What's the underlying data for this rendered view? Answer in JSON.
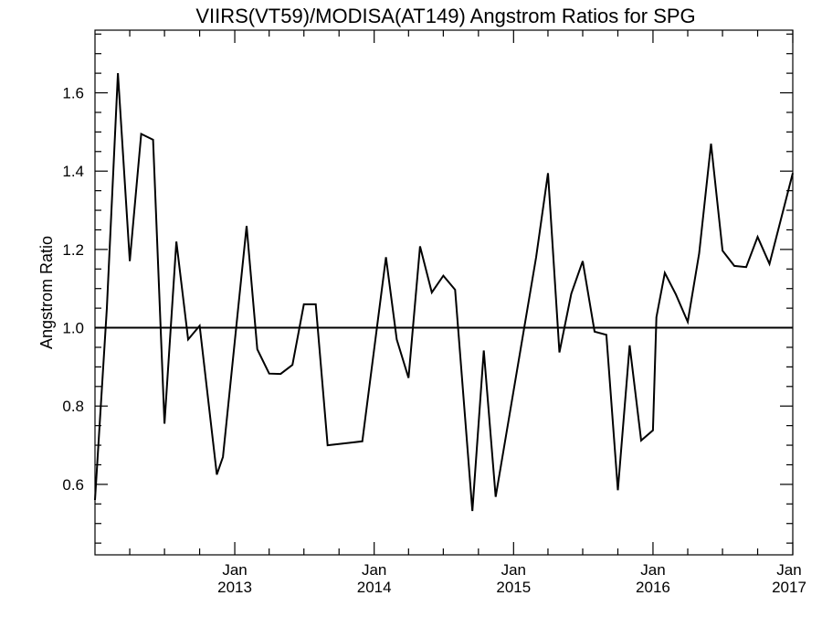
{
  "chart_data": {
    "type": "line",
    "title": "VIIRS(VT59)/MODISA(AT149)  Angstrom Ratios for SPG",
    "xlabel": "",
    "ylabel": "Angstrom Ratio",
    "xlim": [
      "2012-01-01",
      "2017-01-01"
    ],
    "ylim": [
      0.42,
      1.76
    ],
    "yticks": [
      0.6,
      0.8,
      1.0,
      1.2,
      1.4,
      1.6
    ],
    "ytick_labels": [
      "0.6",
      "0.8",
      "1.0",
      "1.2",
      "1.4",
      "1.6"
    ],
    "xticks": [
      {
        "date": "2013-01-01",
        "month": "Jan",
        "year": "2013"
      },
      {
        "date": "2014-01-01",
        "month": "Jan",
        "year": "2014"
      },
      {
        "date": "2015-01-01",
        "month": "Jan",
        "year": "2015"
      },
      {
        "date": "2016-01-01",
        "month": "Jan",
        "year": "2016"
      },
      {
        "date": "2017-01-01",
        "month": "Jan",
        "year": "2017"
      }
    ],
    "reference_line": 1.0,
    "grid": false,
    "series": [
      {
        "points": [
          [
            "2012-01-01",
            0.56
          ],
          [
            "2012-02-01",
            1.05
          ],
          [
            "2012-03-01",
            1.65
          ],
          [
            "2012-04-01",
            1.17
          ],
          [
            "2012-05-01",
            1.495
          ],
          [
            "2012-06-01",
            1.48
          ],
          [
            "2012-07-01",
            0.755
          ],
          [
            "2012-08-01",
            1.22
          ],
          [
            "2012-09-01",
            0.97
          ],
          [
            "2012-10-01",
            1.005
          ],
          [
            "2012-11-15",
            0.625
          ],
          [
            "2012-12-01",
            0.67
          ],
          [
            "2013-02-01",
            1.26
          ],
          [
            "2013-03-01",
            0.945
          ],
          [
            "2013-04-01",
            0.883
          ],
          [
            "2013-05-01",
            0.882
          ],
          [
            "2013-06-01",
            0.905
          ],
          [
            "2013-07-01",
            1.06
          ],
          [
            "2013-08-01",
            1.06
          ],
          [
            "2013-09-01",
            0.7
          ],
          [
            "2013-12-01",
            0.71
          ],
          [
            "2014-02-01",
            1.18
          ],
          [
            "2014-03-01",
            0.97
          ],
          [
            "2014-04-01",
            0.872
          ],
          [
            "2014-05-01",
            1.208
          ],
          [
            "2014-06-01",
            1.09
          ],
          [
            "2014-07-01",
            1.133
          ],
          [
            "2014-08-01",
            1.097
          ],
          [
            "2014-09-15",
            0.532
          ],
          [
            "2014-10-15",
            0.942
          ],
          [
            "2014-11-15",
            0.568
          ],
          [
            "2015-03-01",
            1.18
          ],
          [
            "2015-04-01",
            1.395
          ],
          [
            "2015-05-01",
            0.937
          ],
          [
            "2015-06-01",
            1.087
          ],
          [
            "2015-07-01",
            1.17
          ],
          [
            "2015-08-01",
            0.99
          ],
          [
            "2015-09-01",
            0.982
          ],
          [
            "2015-10-01",
            0.585
          ],
          [
            "2015-11-01",
            0.955
          ],
          [
            "2015-12-01",
            0.712
          ],
          [
            "2016-01-01",
            0.738
          ],
          [
            "2016-01-10",
            1.027
          ],
          [
            "2016-02-01",
            1.14
          ],
          [
            "2016-03-01",
            1.085
          ],
          [
            "2016-04-01",
            1.015
          ],
          [
            "2016-05-01",
            1.19
          ],
          [
            "2016-06-01",
            1.47
          ],
          [
            "2016-07-01",
            1.197
          ],
          [
            "2016-08-01",
            1.158
          ],
          [
            "2016-09-01",
            1.155
          ],
          [
            "2016-10-01",
            1.232
          ],
          [
            "2016-11-01",
            1.163
          ],
          [
            "2017-01-01",
            1.395
          ]
        ]
      }
    ]
  }
}
